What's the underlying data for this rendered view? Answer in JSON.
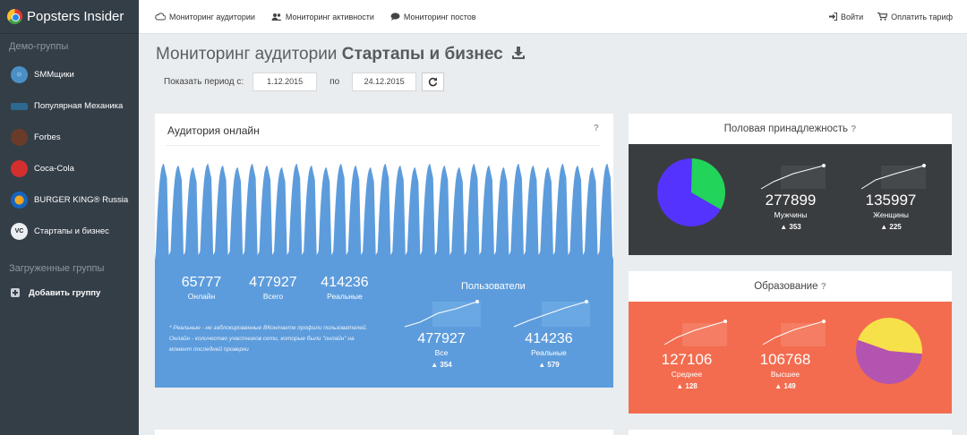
{
  "sidebar": {
    "brand": "Popsters Insider",
    "demo_label": "Демо-группы",
    "groups": [
      {
        "label": "SMMщики",
        "icon": "smm-avatar-icon",
        "color": "#4a90c8"
      },
      {
        "label": "Популярная Механика",
        "icon": "pm-avatar-icon",
        "color": "#2b6a8e"
      },
      {
        "label": "Forbes",
        "icon": "forbes-avatar-icon",
        "color": "#6b3b2a"
      },
      {
        "label": "Coca-Cola",
        "icon": "cocacola-avatar-icon",
        "color": "#d32f2f"
      },
      {
        "label": "BURGER KING® Russia",
        "icon": "burgerking-avatar-icon",
        "color": "#1565c0"
      },
      {
        "label": "Стартапы и бизнес",
        "icon": "startups-avatar-icon",
        "color": "#eceff1"
      }
    ],
    "uploaded_label": "Загруженные группы",
    "add_group": "Добавить группу"
  },
  "topbar": {
    "nav": [
      {
        "label": "Мониторинг аудитории",
        "icon": "cloud-icon"
      },
      {
        "label": "Мониторинг активности",
        "icon": "users-icon"
      },
      {
        "label": "Мониторинг постов",
        "icon": "comment-icon"
      }
    ],
    "login": "Войти",
    "pay": "Оплатить тариф"
  },
  "header": {
    "title_prefix": "Мониторинг аудитории",
    "title_group": "Стартапы и бизнес",
    "period_label": "Показать период с:",
    "date_from": "1.12.2015",
    "to_label": "по",
    "date_to": "24.12.2015"
  },
  "audience": {
    "title": "Аудитория онлайн",
    "help": "?",
    "online_value": "65777",
    "online_label": "Онлайн",
    "total_value": "477927",
    "total_label": "Всего",
    "real_value": "414236",
    "real_label": "Реальные",
    "note": "* Реальные - не заблокированные ВКонтакте профили пользователей. Онлайн - количество участников сети, которые были \"онлайн\" на момент последней проверки",
    "users_title": "Пользователи",
    "users_all_value": "477927",
    "users_all_label": "Все",
    "users_all_delta": "354",
    "users_real_value": "414236",
    "users_real_label": "Реальные",
    "users_real_delta": "579"
  },
  "gender": {
    "title": "Половая принадлежность",
    "help": "?",
    "male_value": "277899",
    "male_label": "Мужчины",
    "male_delta": "353",
    "female_value": "135997",
    "female_label": "Женщины",
    "female_delta": "225",
    "male_share": 0.67,
    "colors": {
      "male": "#5533ff",
      "female": "#22d45a"
    }
  },
  "education": {
    "title": "Образование",
    "help": "?",
    "secondary_value": "127106",
    "secondary_label": "Среднее",
    "secondary_delta": "128",
    "higher_value": "106768",
    "higher_label": "Высшее",
    "higher_delta": "149",
    "secondary_share": 0.54,
    "colors": {
      "secondary": "#b354b0",
      "higher": "#f7e14a"
    }
  },
  "colors": {
    "sidebar": "#343e47",
    "audience_blue": "#5d9cdc",
    "gender_dark": "#3a3d40",
    "education_red": "#f36c4f"
  }
}
